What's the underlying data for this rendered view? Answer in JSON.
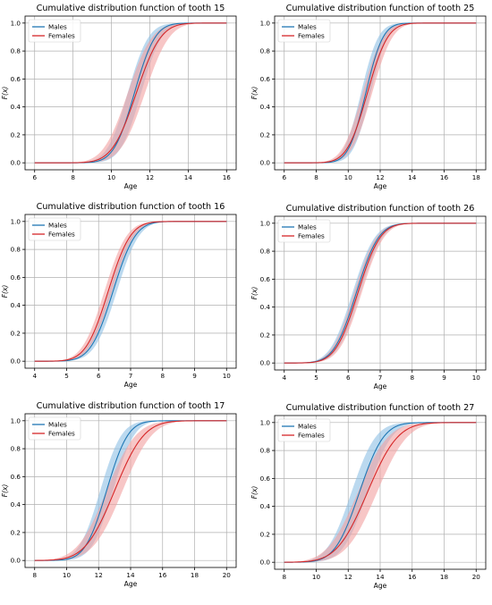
{
  "colors": {
    "males_line": "#1f77b4",
    "males_band": "#8ec0e4",
    "females_line": "#d62728",
    "females_band": "#f2a0a0"
  },
  "chart_data": [
    {
      "type": "line",
      "title": "Cumulative distribution function of tooth 15",
      "xlabel": "Age",
      "ylabel": "F(x)",
      "xlim": [
        5.5,
        16.5
      ],
      "ylim": [
        -0.05,
        1.05
      ],
      "xticks": [
        6,
        8,
        10,
        12,
        14,
        16
      ],
      "yticks": [
        0.0,
        0.2,
        0.4,
        0.6,
        0.8,
        1.0
      ],
      "grid": true,
      "legend_position": "top-left",
      "x_range": [
        6,
        16
      ],
      "series": [
        {
          "name": "Males",
          "median_x": 11.2,
          "spread": 0.85,
          "band": 0.35
        },
        {
          "name": "Females",
          "median_x": 11.3,
          "spread": 1.0,
          "band": 0.45
        }
      ]
    },
    {
      "type": "line",
      "title": "Cumulative distribution function of tooth 25",
      "xlabel": "Age",
      "ylabel": "F(x)",
      "xlim": [
        5.4,
        18.6
      ],
      "ylim": [
        -0.05,
        1.05
      ],
      "xticks": [
        6,
        8,
        10,
        12,
        14,
        16,
        18
      ],
      "yticks": [
        0.0,
        0.2,
        0.4,
        0.6,
        0.8,
        1.0
      ],
      "grid": true,
      "legend_position": "top-left",
      "x_range": [
        6,
        18
      ],
      "series": [
        {
          "name": "Males",
          "median_x": 11.1,
          "spread": 0.85,
          "band": 0.3
        },
        {
          "name": "Females",
          "median_x": 11.2,
          "spread": 1.0,
          "band": 0.3
        }
      ]
    },
    {
      "type": "line",
      "title": "Cumulative distribution function of tooth 16",
      "xlabel": "Age",
      "ylabel": "F(x)",
      "xlim": [
        3.7,
        10.3
      ],
      "ylim": [
        -0.05,
        1.05
      ],
      "xticks": [
        4,
        5,
        6,
        7,
        8,
        9,
        10
      ],
      "yticks": [
        0.0,
        0.2,
        0.4,
        0.6,
        0.8,
        1.0
      ],
      "grid": true,
      "legend_position": "top-left",
      "x_range": [
        4,
        10
      ],
      "series": [
        {
          "name": "Males",
          "median_x": 6.45,
          "spread": 0.55,
          "band": 0.12
        },
        {
          "name": "Females",
          "median_x": 6.3,
          "spread": 0.55,
          "band": 0.12
        }
      ]
    },
    {
      "type": "line",
      "title": "Cumulative distribution function of tooth 26",
      "xlabel": "Age",
      "ylabel": "F(x)",
      "xlim": [
        3.7,
        10.3
      ],
      "ylim": [
        -0.05,
        1.05
      ],
      "xticks": [
        4,
        5,
        6,
        7,
        8,
        9,
        10
      ],
      "yticks": [
        0.0,
        0.2,
        0.4,
        0.6,
        0.8,
        1.0
      ],
      "grid": true,
      "legend_position": "top-left",
      "x_range": [
        4,
        10
      ],
      "series": [
        {
          "name": "Males",
          "median_x": 6.25,
          "spread": 0.55,
          "band": 0.12
        },
        {
          "name": "Females",
          "median_x": 6.3,
          "spread": 0.55,
          "band": 0.12
        }
      ]
    },
    {
      "type": "line",
      "title": "Cumulative distribution function of tooth 17",
      "xlabel": "Age",
      "ylabel": "F(x)",
      "xlim": [
        7.4,
        20.6
      ],
      "ylim": [
        -0.05,
        1.05
      ],
      "xticks": [
        8,
        10,
        12,
        14,
        16,
        18,
        20
      ],
      "yticks": [
        0.0,
        0.2,
        0.4,
        0.6,
        0.8,
        1.0
      ],
      "grid": true,
      "legend_position": "top-left",
      "x_range": [
        8,
        20
      ],
      "series": [
        {
          "name": "Males",
          "median_x": 12.5,
          "spread": 1.05,
          "band": 0.4
        },
        {
          "name": "Females",
          "median_x": 13.0,
          "spread": 1.45,
          "band": 0.5
        }
      ]
    },
    {
      "type": "line",
      "title": "Cumulative distribution function of tooth 27",
      "xlabel": "Age",
      "ylabel": "F(x)",
      "xlim": [
        7.4,
        20.6
      ],
      "ylim": [
        -0.05,
        1.05
      ],
      "xticks": [
        8,
        10,
        12,
        14,
        16,
        18,
        20
      ],
      "yticks": [
        0.0,
        0.2,
        0.4,
        0.6,
        0.8,
        1.0
      ],
      "grid": true,
      "legend_position": "top-left",
      "x_range": [
        8,
        20
      ],
      "series": [
        {
          "name": "Males",
          "median_x": 12.7,
          "spread": 1.2,
          "band": 0.5
        },
        {
          "name": "Females",
          "median_x": 13.2,
          "spread": 1.5,
          "band": 0.6
        }
      ]
    }
  ]
}
